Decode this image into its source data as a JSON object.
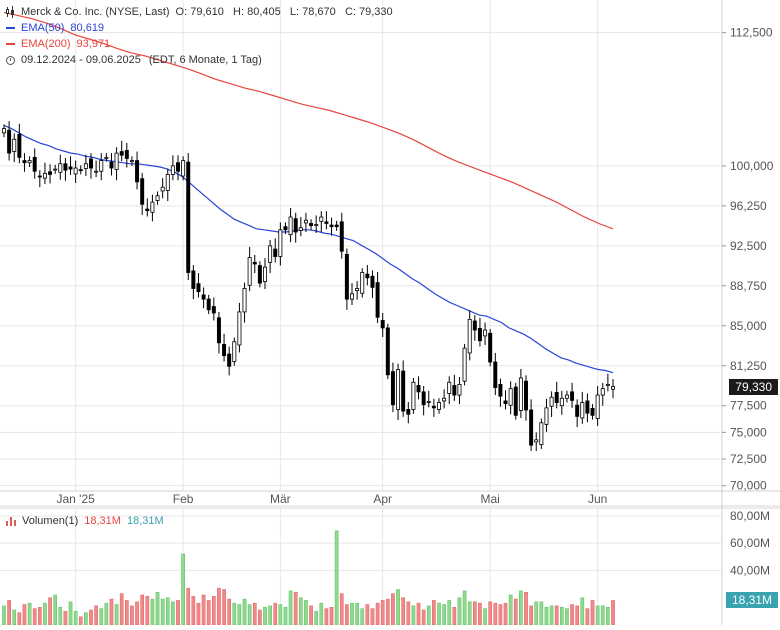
{
  "legend": {
    "title": "Merck & Co. Inc. (NYSE, Last)",
    "ohlc": "O: 79,610   H: 80,405   L: 78,670   C: 79,330",
    "ema50_label": "EMA(50)",
    "ema50_value": "80,619",
    "ema200_label": "EMA(200)",
    "ema200_value": "93,971",
    "period": "09.12.2024 - 09.06.2025",
    "period_note": "(EDT, 6 Monate, 1 Tag)"
  },
  "volume_legend": {
    "label": "Volumen(1)",
    "value_red": "18,31M",
    "value_teal": "18,31M"
  },
  "last_price_tag": "79,330",
  "last_volume_tag": "18,31M",
  "colors": {
    "up": "#ffffff",
    "down": "#000000",
    "ema50": "#2a44d8",
    "ema200": "#e8453c",
    "vol_up": "#8fd88f",
    "vol_down": "#f08a8a",
    "tag_bg": "#1a1a1a",
    "vol_tag_bg": "#3aa3b0",
    "grid": "#e6e6e6"
  },
  "chart_data": {
    "type": "candlestick",
    "x_labels": [
      "Jan '25",
      "Feb",
      "Mär",
      "Apr",
      "Mai",
      "Jun"
    ],
    "x_label_index": [
      14,
      35,
      54,
      74,
      95,
      116
    ],
    "y_ticks": [
      "112,500",
      "100,000",
      "96,250",
      "92,500",
      "88,750",
      "85,000",
      "81,250",
      "77,500",
      "75,000",
      "72,500",
      "70,000"
    ],
    "y_tick_values": [
      112.5,
      100,
      96.25,
      92.5,
      88.75,
      85,
      81.25,
      77.5,
      75,
      72.5,
      70
    ],
    "volume_ticks": [
      "80,00M",
      "60,00M",
      "40,00M"
    ],
    "volume_tick_values": [
      80,
      60,
      40
    ],
    "closes": [
      103.5,
      101.2,
      102.5,
      100.8,
      100.3,
      100.5,
      99.5,
      99.0,
      99.3,
      99.2,
      99.7,
      100.2,
      99.6,
      99.7,
      99.8,
      99.6,
      100.2,
      99.8,
      99.5,
      100.5,
      100.8,
      99.8,
      101.2,
      101.0,
      100.7,
      100.5,
      98.5,
      96.4,
      95.8,
      96.6,
      97.2,
      98.0,
      99.2,
      100.0,
      99.5,
      100.5,
      90.0,
      88.5,
      88.2,
      87.5,
      86.5,
      86.2,
      83.4,
      82.2,
      81.2,
      83.5,
      86.3,
      88.5,
      91.4,
      90.8,
      89.0,
      90.5,
      92.5,
      91.5,
      94.0,
      94.0,
      95.2,
      93.8,
      94.2,
      94.9,
      94.4,
      94.5,
      95.2,
      94.6,
      94.3,
      94.3,
      92.0,
      87.5,
      88.0,
      88.5,
      90.0,
      89.5,
      88.6,
      85.8,
      84.8,
      80.4,
      77.6,
      80.9,
      77.0,
      76.7,
      79.7,
      78.8,
      77.6,
      77.9,
      77.3,
      77.8,
      78.2,
      79.7,
      78.5,
      79.5,
      82.9,
      85.6,
      84.6,
      83.6,
      84.6,
      81.6,
      79.2,
      78.4,
      77.7,
      79.1,
      76.6,
      80.1,
      77.1,
      73.8,
      74.3,
      75.9,
      77.3,
      78.3,
      77.8,
      78.2,
      78.5,
      78.0,
      76.5,
      77.8,
      76.8,
      76.6,
      78.5,
      79.1,
      79.5,
      79.3
    ],
    "ema50": [
      103.8,
      103.5,
      103.1,
      102.7,
      102.4,
      102.1,
      101.9,
      101.6,
      101.4,
      101.2,
      101.1,
      100.9,
      100.8,
      100.6,
      100.5,
      100.4,
      100.3,
      100.2,
      100.2,
      100.1,
      100.0,
      99.9,
      99.7,
      99.4,
      99.0,
      98.4,
      97.8,
      97.2,
      96.6,
      96.0,
      95.5,
      95.0,
      94.7,
      94.4,
      94.1,
      94.0,
      93.9,
      93.8,
      93.8,
      93.9,
      94.0,
      94.0,
      93.9,
      93.7,
      93.6,
      93.4,
      93.2,
      93.0,
      92.6,
      92.2,
      91.8,
      91.3,
      90.8,
      90.4,
      89.9,
      89.4,
      89.0,
      88.5,
      88.0,
      87.6,
      87.2,
      86.9,
      86.6,
      86.3,
      86.0,
      85.9,
      85.6,
      85.3,
      84.8,
      84.5,
      84.2,
      83.8,
      83.3,
      82.8,
      82.4,
      82.0,
      81.8,
      81.5,
      81.3,
      81.1,
      80.9,
      80.8,
      80.6
    ],
    "ema50_start_index": 0,
    "ema200": [
      114.4,
      114.1,
      113.8,
      113.4,
      112.9,
      112.3,
      111.9,
      111.5,
      111.0,
      110.6,
      110.3,
      109.9,
      109.5,
      109.1,
      108.6,
      108.1,
      107.7,
      107.3,
      107.0,
      106.6,
      106.2,
      105.8,
      105.5,
      105.2,
      104.8,
      104.4,
      104.0,
      103.5,
      103.0,
      102.4,
      101.7,
      101.0,
      100.4,
      99.9,
      99.4,
      98.9,
      98.4,
      97.8,
      97.2,
      96.6,
      95.9,
      95.2,
      94.6,
      94.1
    ],
    "ema200_start_index": 0,
    "volume_m": [
      14,
      18,
      11,
      9,
      15,
      16,
      12,
      13,
      16,
      20,
      22,
      13,
      10,
      17,
      10,
      6,
      9,
      11,
      14,
      12,
      16,
      19,
      15,
      23,
      18,
      14,
      17,
      22,
      21,
      19,
      24,
      19,
      20,
      17,
      18,
      52,
      27,
      21,
      16,
      22,
      18,
      21,
      27,
      26,
      19,
      16,
      15,
      19,
      15,
      16,
      11,
      13,
      14,
      16,
      15,
      13,
      25,
      24,
      20,
      18,
      14,
      10,
      16,
      12,
      13,
      69,
      23,
      15,
      16,
      16,
      12,
      15,
      12,
      16,
      18,
      19,
      23,
      26,
      20,
      17,
      14,
      16,
      11,
      14,
      18,
      16,
      15,
      18,
      13,
      20,
      25,
      17,
      17,
      16,
      12,
      17,
      16,
      15,
      16,
      22,
      19,
      25,
      24,
      14,
      17,
      17,
      13,
      14,
      14,
      13,
      12,
      15,
      14,
      20,
      12,
      18,
      14,
      14,
      13,
      18
    ],
    "ylim": [
      69.5,
      115
    ],
    "volume_ylim": [
      0,
      85
    ]
  }
}
